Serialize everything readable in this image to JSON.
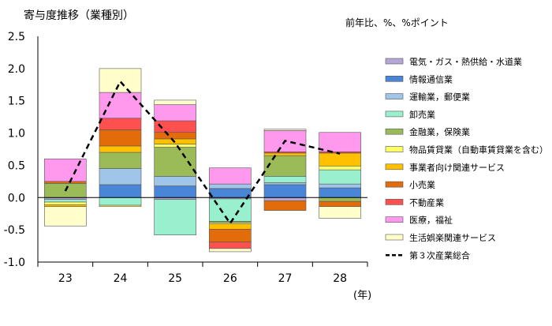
{
  "chart_data": {
    "type": "bar",
    "title": "寄与度推移（業種別）",
    "unit_note": "前年比、%、%ポイント",
    "x_unit": "(年)",
    "categories": [
      "23",
      "24",
      "25",
      "26",
      "27",
      "28"
    ],
    "ylim": [
      -1.0,
      2.5
    ],
    "yticks": [
      "2.5",
      "2.0",
      "1.5",
      "1.0",
      "0.5",
      "0.0",
      "-0.5",
      "-1.0"
    ],
    "legend_placement": "right",
    "series": [
      {
        "name": "電気・ガス・熱供給・水道業",
        "color": "#b4a7d6",
        "values": [
          -0.03,
          0.0,
          -0.03,
          -0.02,
          -0.05,
          0.0
        ]
      },
      {
        "name": "情報通信業",
        "color": "#4a86d8",
        "values": [
          0.0,
          0.2,
          0.18,
          0.14,
          0.2,
          0.15
        ]
      },
      {
        "name": "運輸業，郵便業",
        "color": "#9fc5e8",
        "values": [
          0.0,
          0.25,
          0.15,
          0.07,
          0.03,
          0.06
        ]
      },
      {
        "name": "卸売業",
        "color": "#99f0cf",
        "values": [
          -0.04,
          -0.12,
          -0.55,
          -0.35,
          0.1,
          0.22
        ]
      },
      {
        "name": "金融業，保険業",
        "color": "#9bbb59",
        "values": [
          0.22,
          0.25,
          0.45,
          -0.02,
          0.32,
          -0.06
        ]
      },
      {
        "name": "物品賃貸業（自動車賃貸業を含む）",
        "color": "#ffff66",
        "values": [
          -0.04,
          -0.02,
          0.05,
          -0.02,
          0.0,
          0.06
        ]
      },
      {
        "name": "事業者向け関連サービス",
        "color": "#ffc000",
        "values": [
          -0.03,
          0.1,
          0.08,
          -0.08,
          0.04,
          0.2
        ]
      },
      {
        "name": "小売業",
        "color": "#e36c0a",
        "values": [
          0.03,
          0.25,
          0.1,
          -0.2,
          -0.15,
          -0.08
        ]
      },
      {
        "name": "不動産業",
        "color": "#ff5050",
        "values": [
          0.0,
          0.18,
          0.18,
          -0.1,
          0.02,
          0.02
        ]
      },
      {
        "name": "医療，福祉",
        "color": "#ff99ee",
        "values": [
          0.35,
          0.4,
          0.25,
          0.25,
          0.33,
          0.3
        ]
      },
      {
        "name": "生活娯楽関連サービス",
        "color": "#ffffcc",
        "values": [
          -0.3,
          0.37,
          0.07,
          -0.05,
          0.02,
          -0.18
        ]
      }
    ],
    "total_series": {
      "name": "第３次産業総合",
      "values": [
        0.1,
        1.8,
        0.85,
        -0.4,
        0.88,
        0.68
      ]
    }
  }
}
